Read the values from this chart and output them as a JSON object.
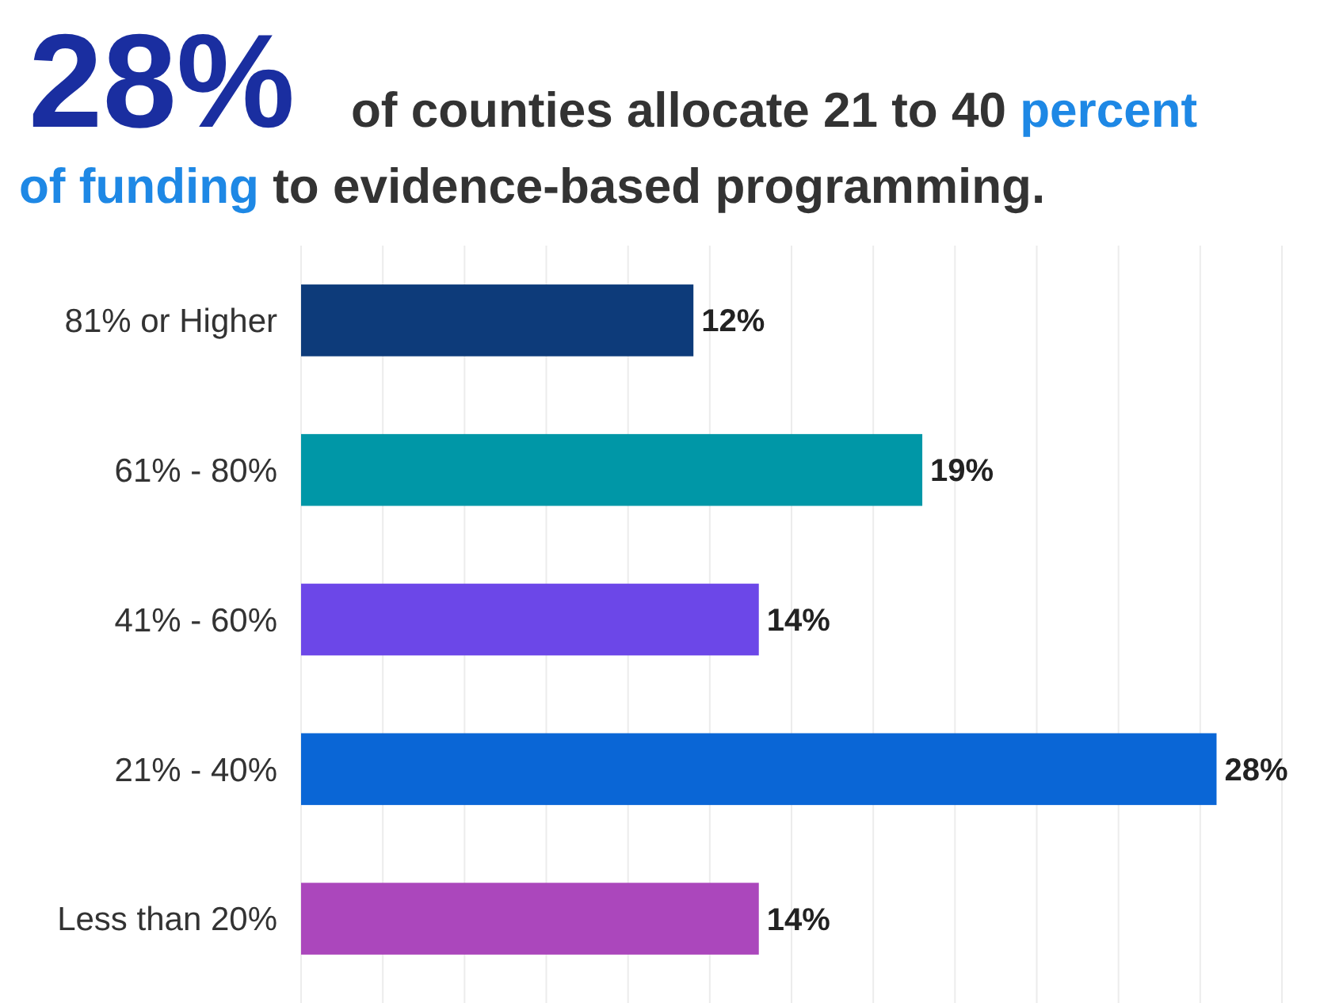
{
  "chart_data": {
    "type": "bar",
    "orientation": "horizontal",
    "title": "28% of counties allocate 21 to 40 percent of funding to evidence-based programming.",
    "categories": [
      "81% or Higher",
      "61% - 80%",
      "41% - 60%",
      "21% - 40%",
      "Less than 20%"
    ],
    "values": [
      12,
      19,
      14,
      28,
      14
    ],
    "colors": [
      "#0d3b7a",
      "#0097a7",
      "#6c47e8",
      "#0a66d6",
      "#ab47bc"
    ],
    "value_labels": [
      "12%",
      "19%",
      "14%",
      "28%",
      "14%"
    ],
    "xlim": [
      0,
      30
    ],
    "xticks": [
      {
        "value": 0,
        "label": null
      },
      {
        "value": 2.5,
        "label": null
      },
      {
        "value": 5,
        "label": null
      },
      {
        "value": 7.5,
        "label": null
      },
      {
        "value": 10,
        "label": null
      },
      {
        "value": 12.5,
        "label": null
      },
      {
        "value": 15,
        "label": null
      },
      {
        "value": 17.5,
        "label": null
      },
      {
        "value": 20,
        "label": null
      },
      {
        "value": 22.5,
        "label": null
      },
      {
        "value": 25,
        "label": null
      },
      {
        "value": 27.5,
        "label": null
      },
      {
        "value": 30,
        "label": null
      }
    ],
    "grid": "x",
    "tick_labels": "y"
  }
}
